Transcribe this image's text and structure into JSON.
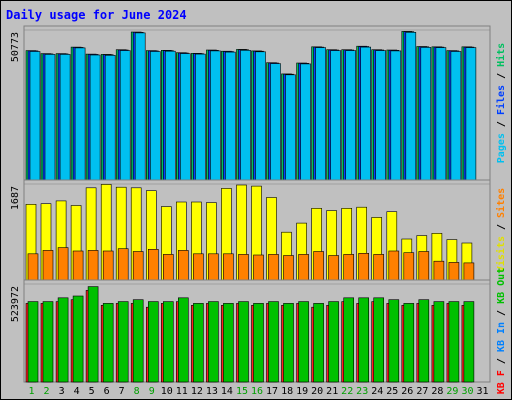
{
  "chart_data": {
    "type": "bar",
    "title": "Daily usage for June 2024",
    "categories": [
      "1",
      "2",
      "3",
      "4",
      "5",
      "6",
      "7",
      "8",
      "9",
      "10",
      "11",
      "12",
      "13",
      "14",
      "15",
      "16",
      "17",
      "18",
      "19",
      "20",
      "21",
      "22",
      "23",
      "24",
      "25",
      "26",
      "27",
      "28",
      "29",
      "30",
      "31"
    ],
    "weekend_days": [
      "1",
      "2",
      "8",
      "9",
      "15",
      "16",
      "22",
      "23",
      "29",
      "30"
    ],
    "panels": [
      {
        "id": "hits-panel",
        "max_label": "50773",
        "ymax": 50773,
        "side_legend": [
          {
            "label": "Pages",
            "color": "#00c0f0"
          },
          {
            "label": "Files",
            "color": "#0040ff"
          },
          {
            "label": "Hits",
            "color": "#00c060"
          }
        ],
        "series": [
          {
            "name": "Hits",
            "color": "#00c060",
            "values": [
              43800,
              42800,
              42800,
              45000,
              42600,
              42500,
              44100,
              50100,
              43800,
              43900,
              43100,
              42900,
              44000,
              43600,
              44200,
              43700,
              39700,
              35900,
              39600,
              45100,
              44100,
              44100,
              45300,
              44100,
              44000,
              50300,
              45200,
              45100,
              43800,
              45100,
              0
            ]
          },
          {
            "name": "Files",
            "color": "#0040ff",
            "values": [
              43700,
              42700,
              42700,
              44900,
              42500,
              42400,
              44000,
              50000,
              43700,
              43800,
              43000,
              42800,
              43900,
              43500,
              44100,
              43600,
              39600,
              35800,
              39500,
              45000,
              44000,
              44000,
              45200,
              44000,
              43900,
              50200,
              45100,
              45000,
              43700,
              45000,
              0
            ]
          },
          {
            "name": "Pages",
            "color": "#00c0f0",
            "values": [
              43500,
              42500,
              42500,
              44700,
              42300,
              42200,
              43800,
              49800,
              43500,
              43600,
              42800,
              42600,
              43700,
              43300,
              43900,
              43400,
              39400,
              35600,
              39300,
              44800,
              43800,
              43800,
              45000,
              43800,
              43700,
              50000,
              44900,
              44800,
              43500,
              44800,
              0
            ]
          }
        ]
      },
      {
        "id": "visits-panel",
        "max_label": "1687",
        "ymax": 1687,
        "side_legend": [
          {
            "label": "Visits",
            "color": "#e0e000"
          },
          {
            "label": "Sites",
            "color": "#ff8000"
          }
        ],
        "series": [
          {
            "name": "Visits",
            "color": "#ffff00",
            "values": [
              1330,
              1340,
              1390,
              1310,
              1620,
              1680,
              1630,
              1620,
              1570,
              1290,
              1370,
              1370,
              1360,
              1610,
              1670,
              1650,
              1450,
              840,
              1000,
              1260,
              1220,
              1260,
              1280,
              1100,
              1200,
              720,
              780,
              820,
              710,
              650,
              0
            ]
          },
          {
            "name": "Sites",
            "color": "#ff8000",
            "values": [
              460,
              520,
              570,
              510,
              520,
              510,
              550,
              500,
              540,
              450,
              520,
              460,
              460,
              460,
              450,
              440,
              450,
              430,
              450,
              500,
              430,
              450,
              470,
              450,
              510,
              480,
              500,
              330,
              310,
              300,
              0
            ]
          }
        ]
      },
      {
        "id": "kbytes-panel",
        "max_label": "523972",
        "ymax": 523972,
        "side_legend": [
          {
            "label": "KB F",
            "color": "#ff0000"
          },
          {
            "label": "KB In",
            "color": "#0080ff"
          },
          {
            "label": "KB Out",
            "color": "#00c000"
          }
        ],
        "series": [
          {
            "name": "KB F",
            "color": "#ff2020",
            "values": [
              420000,
              420000,
              430000,
              440000,
              490000,
              410000,
              420000,
              420000,
              400000,
              420000,
              430000,
              410000,
              420000,
              410000,
              420000,
              410000,
              420000,
              410000,
              420000,
              400000,
              410000,
              430000,
              420000,
              430000,
              420000,
              410000,
              420000,
              410000,
              420000,
              410000,
              0
            ]
          },
          {
            "name": "KB Out",
            "color": "#00c000",
            "values": [
              430000,
              430000,
              450000,
              460000,
              510000,
              420000,
              430000,
              440000,
              430000,
              430000,
              450000,
              420000,
              430000,
              420000,
              430000,
              420000,
              430000,
              420000,
              430000,
              420000,
              430000,
              450000,
              450000,
              450000,
              440000,
              420000,
              440000,
              430000,
              430000,
              430000,
              0
            ]
          }
        ]
      }
    ]
  }
}
